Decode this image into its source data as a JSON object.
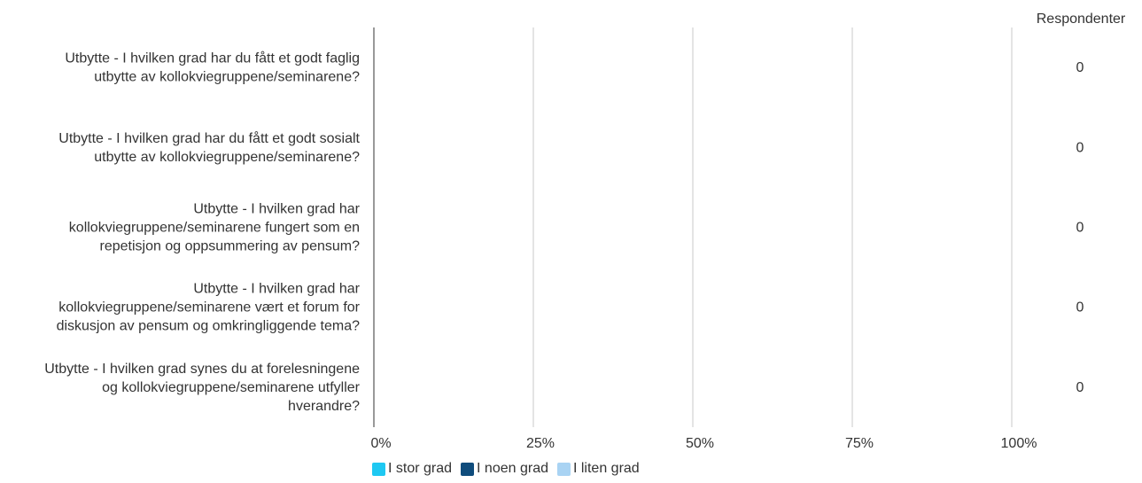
{
  "chart_data": {
    "type": "bar",
    "orientation": "horizontal",
    "stacked": true,
    "title": "",
    "xlabel": "",
    "ylabel": "",
    "xlim": [
      0,
      100
    ],
    "x_tick_labels": [
      "0%",
      "25%",
      "50%",
      "75%",
      "100%"
    ],
    "categories": [
      "Utbytte - I hvilken grad har du fått et godt faglig utbytte av kollokviegruppene/seminarene?",
      "Utbytte - I hvilken grad har du fått et godt sosialt utbytte av kollokviegruppene/seminarene?",
      "Utbytte - I hvilken grad har kollokviegruppene/seminarene fungert som en repetisjon og oppsummering av pensum?",
      "Utbytte - I hvilken grad har kollokviegruppene/seminarene vært et forum for diskusjon av pensum og omkringliggende tema?",
      "Utbytte - I hvilken grad synes du at forelesningene og kollokviegruppene/seminarene utfyller hverandre?"
    ],
    "category_label_lines": [
      [
        "Utbytte - I hvilken grad har du fått et godt faglig",
        "utbytte av kollokviegruppene/seminarene?"
      ],
      [
        "Utbytte - I hvilken grad har du fått et godt sosialt",
        "utbytte av kollokviegruppene/seminarene?"
      ],
      [
        "Utbytte - I hvilken grad har",
        "kollokviegruppene/seminarene fungert som en",
        "repetisjon og oppsummering av pensum?"
      ],
      [
        "Utbytte - I hvilken grad har",
        "kollokviegruppene/seminarene vært et forum for",
        "diskusjon av pensum og omkringliggende tema?"
      ],
      [
        "Utbytte - I hvilken grad synes du at forelesningene",
        "og kollokviegruppene/seminarene utfyller",
        "hverandre?"
      ]
    ],
    "series": [
      {
        "name": "I stor grad",
        "color": "#1ec8f2",
        "values": [
          0,
          0,
          0,
          0,
          0
        ]
      },
      {
        "name": "I noen grad",
        "color": "#0f4c7c",
        "values": [
          0,
          0,
          0,
          0,
          0
        ]
      },
      {
        "name": "I liten grad",
        "color": "#a9d3f3",
        "values": [
          0,
          0,
          0,
          0,
          0
        ]
      }
    ],
    "respondents_header": "Respondenter",
    "respondents": [
      "0",
      "0",
      "0",
      "0",
      "0"
    ],
    "grid": true,
    "legend_position": "bottom"
  },
  "colors": {
    "gridline": "#c8c8c8",
    "axis": "#999999",
    "text": "#333333"
  }
}
